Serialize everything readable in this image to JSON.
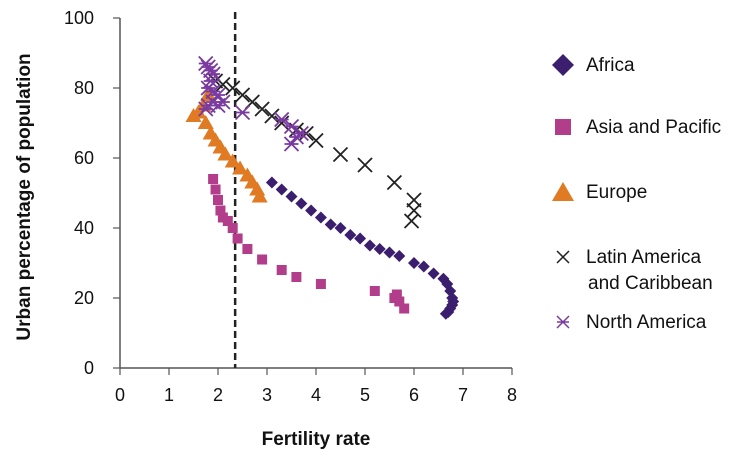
{
  "chart_data": {
    "type": "scatter",
    "xlabel": "Fertility rate",
    "ylabel": "Urban percentage of population",
    "xlim": [
      0,
      8
    ],
    "ylim": [
      0,
      100
    ],
    "xticks": [
      "0",
      "1",
      "2",
      "3",
      "4",
      "5",
      "6",
      "7",
      "8"
    ],
    "yticks": [
      "0",
      "20",
      "40",
      "60",
      "80",
      "100"
    ],
    "grid": false,
    "legend_position": "right",
    "reference_line": {
      "x": 2.35,
      "style": "dashed"
    },
    "series": [
      {
        "name": "Africa",
        "marker": "diamond",
        "color": "#3b1f6e",
        "points": [
          [
            3.1,
            53
          ],
          [
            3.3,
            51
          ],
          [
            3.5,
            49
          ],
          [
            3.7,
            47
          ],
          [
            3.9,
            45
          ],
          [
            4.1,
            43
          ],
          [
            4.3,
            41
          ],
          [
            4.5,
            40
          ],
          [
            4.7,
            38
          ],
          [
            4.9,
            37
          ],
          [
            5.1,
            35
          ],
          [
            5.3,
            34
          ],
          [
            5.5,
            33
          ],
          [
            5.7,
            32
          ],
          [
            6.0,
            30
          ],
          [
            6.2,
            29
          ],
          [
            6.4,
            27
          ],
          [
            6.6,
            25.5
          ],
          [
            6.68,
            24
          ],
          [
            6.74,
            22
          ],
          [
            6.78,
            20
          ],
          [
            6.8,
            19
          ],
          [
            6.78,
            18
          ],
          [
            6.74,
            17
          ],
          [
            6.7,
            16
          ],
          [
            6.65,
            15.5
          ]
        ]
      },
      {
        "name": "Asia and Pacific",
        "marker": "square",
        "color": "#b23d8a",
        "points": [
          [
            1.9,
            54
          ],
          [
            1.95,
            51
          ],
          [
            2.0,
            48
          ],
          [
            2.05,
            45
          ],
          [
            2.1,
            43
          ],
          [
            2.2,
            42
          ],
          [
            2.3,
            40
          ],
          [
            2.4,
            37
          ],
          [
            2.6,
            34
          ],
          [
            2.9,
            31
          ],
          [
            3.3,
            28
          ],
          [
            3.6,
            26
          ],
          [
            4.1,
            24
          ],
          [
            5.2,
            22
          ],
          [
            5.6,
            20
          ],
          [
            5.7,
            19
          ],
          [
            5.65,
            21
          ],
          [
            5.8,
            17
          ]
        ]
      },
      {
        "name": "Europe",
        "marker": "triangle",
        "color": "#e07a23",
        "points": [
          [
            1.5,
            72
          ],
          [
            1.6,
            73
          ],
          [
            1.7,
            75
          ],
          [
            1.8,
            78
          ],
          [
            1.75,
            70
          ],
          [
            1.85,
            67
          ],
          [
            1.95,
            65
          ],
          [
            2.05,
            63
          ],
          [
            2.15,
            61
          ],
          [
            2.3,
            59
          ],
          [
            2.45,
            57
          ],
          [
            2.6,
            55
          ],
          [
            2.7,
            53
          ],
          [
            2.8,
            51
          ],
          [
            2.85,
            49
          ]
        ]
      },
      {
        "name": "Latin America and Caribbean",
        "marker": "x",
        "color": "#222222",
        "points": [
          [
            1.95,
            82
          ],
          [
            2.1,
            81
          ],
          [
            2.3,
            80
          ],
          [
            2.5,
            78
          ],
          [
            2.7,
            76
          ],
          [
            2.9,
            74
          ],
          [
            3.1,
            72
          ],
          [
            3.3,
            70
          ],
          [
            3.6,
            68
          ],
          [
            3.8,
            67
          ],
          [
            4.0,
            65
          ],
          [
            4.5,
            61
          ],
          [
            5.0,
            58
          ],
          [
            5.6,
            53
          ],
          [
            6.0,
            48
          ],
          [
            6.0,
            45
          ],
          [
            5.95,
            42
          ]
        ]
      },
      {
        "name": "North America",
        "marker": "asterisk",
        "color": "#7a3aa0",
        "points": [
          [
            1.75,
            87
          ],
          [
            1.8,
            86
          ],
          [
            1.85,
            85
          ],
          [
            1.9,
            84
          ],
          [
            1.85,
            82
          ],
          [
            1.8,
            80
          ],
          [
            1.9,
            79
          ],
          [
            2.0,
            78
          ],
          [
            1.9,
            76
          ],
          [
            1.8,
            75
          ],
          [
            1.75,
            74
          ],
          [
            2.0,
            75
          ],
          [
            2.1,
            76
          ],
          [
            2.5,
            73
          ],
          [
            3.3,
            71
          ],
          [
            3.5,
            69
          ],
          [
            3.7,
            67
          ],
          [
            3.6,
            66
          ],
          [
            3.5,
            64
          ]
        ]
      }
    ]
  }
}
